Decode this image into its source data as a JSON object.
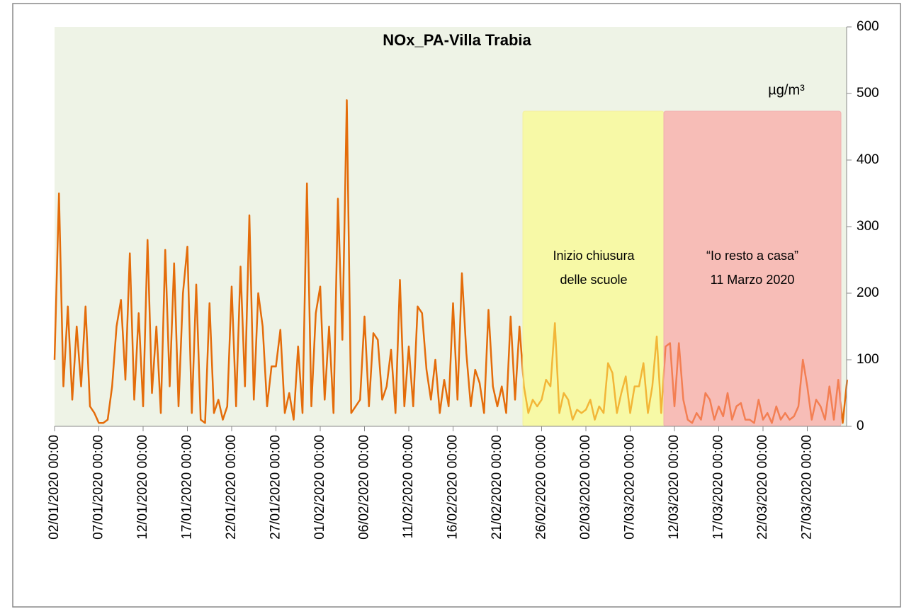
{
  "chart_data": {
    "type": "line",
    "title": "NOx_PA-Villa Trabia",
    "unit": "µg/m³",
    "annotations": [
      "Inizio chiusura",
      "delle scuole",
      "“Io resto a casa”",
      "11 Marzo 2020"
    ],
    "color": "#e46c0a",
    "ylim": [
      0,
      600
    ],
    "yticks": [
      0,
      100,
      200,
      300,
      400,
      500,
      600
    ],
    "categories": [
      "02/01/2020 00:00",
      null,
      null,
      null,
      null,
      null,
      null,
      null,
      null,
      null,
      "07/01/2020 00:00",
      null,
      null,
      null,
      null,
      null,
      null,
      null,
      null,
      null,
      "12/01/2020 00:00",
      null,
      null,
      null,
      null,
      null,
      null,
      null,
      null,
      null,
      "17/01/2020 00:00",
      null,
      null,
      null,
      null,
      null,
      null,
      null,
      null,
      null,
      "22/01/2020 00:00",
      null,
      null,
      null,
      null,
      null,
      null,
      null,
      null,
      null,
      "27/01/2020 00:00",
      null,
      null,
      null,
      null,
      null,
      null,
      null,
      null,
      null,
      "01/02/2020 00:00",
      null,
      null,
      null,
      null,
      null,
      null,
      null,
      null,
      null,
      "06/02/2020 00:00",
      null,
      null,
      null,
      null,
      null,
      null,
      null,
      null,
      null,
      "11/02/2020 00:00",
      null,
      null,
      null,
      null,
      null,
      null,
      null,
      null,
      null,
      "16/02/2020 00:00",
      null,
      null,
      null,
      null,
      null,
      null,
      null,
      null,
      null,
      "21/02/2020 00:00",
      null,
      null,
      null,
      null,
      null,
      null,
      null,
      null,
      null,
      "26/02/2020 00:00",
      null,
      null,
      null,
      null,
      null,
      null,
      null,
      null,
      null,
      "02/03/2020 00:00",
      null,
      null,
      null,
      null,
      null,
      null,
      null,
      null,
      null,
      "07/03/2020 00:00",
      null,
      null,
      null,
      null,
      null,
      null,
      null,
      null,
      null,
      "12/03/2020 00:00",
      null,
      null,
      null,
      null,
      null,
      null,
      null,
      null,
      null,
      "17/03/2020 00:00",
      null,
      null,
      null,
      null,
      null,
      null,
      null,
      null,
      null,
      "22/03/2020 00:00",
      null,
      null,
      null,
      null,
      null,
      null,
      null,
      null,
      null,
      "27/03/2020 00:00",
      null,
      null,
      null,
      null,
      null,
      null,
      null,
      null,
      null
    ],
    "values": [
      100,
      350,
      60,
      180,
      40,
      150,
      60,
      180,
      30,
      20,
      5,
      5,
      10,
      60,
      150,
      190,
      70,
      260,
      40,
      170,
      30,
      280,
      50,
      150,
      20,
      265,
      60,
      245,
      30,
      200,
      270,
      20,
      213,
      10,
      5,
      185,
      20,
      40,
      10,
      30,
      210,
      30,
      240,
      60,
      317,
      40,
      200,
      150,
      30,
      90,
      90,
      145,
      20,
      50,
      10,
      120,
      20,
      365,
      30,
      170,
      210,
      40,
      150,
      20,
      342,
      130,
      490,
      20,
      30,
      40,
      165,
      30,
      140,
      130,
      40,
      60,
      115,
      20,
      220,
      30,
      120,
      30,
      180,
      170,
      85,
      40,
      100,
      20,
      70,
      30,
      185,
      40,
      230,
      110,
      30,
      85,
      65,
      20,
      175,
      60,
      30,
      60,
      20,
      165,
      40,
      150,
      60,
      20,
      40,
      30,
      40,
      70,
      60,
      155,
      20,
      50,
      40,
      10,
      25,
      20,
      25,
      40,
      10,
      30,
      20,
      95,
      80,
      20,
      50,
      75,
      20,
      60,
      60,
      95,
      20,
      60,
      135,
      20,
      120,
      125,
      30,
      125,
      40,
      10,
      5,
      20,
      10,
      50,
      40,
      10,
      30,
      15,
      50,
      10,
      30,
      35,
      10,
      10,
      5,
      40,
      10,
      20,
      5,
      30,
      10,
      20,
      10,
      15,
      30,
      100,
      60,
      10,
      40,
      30,
      10,
      60,
      10,
      70,
      5,
      70
    ]
  }
}
